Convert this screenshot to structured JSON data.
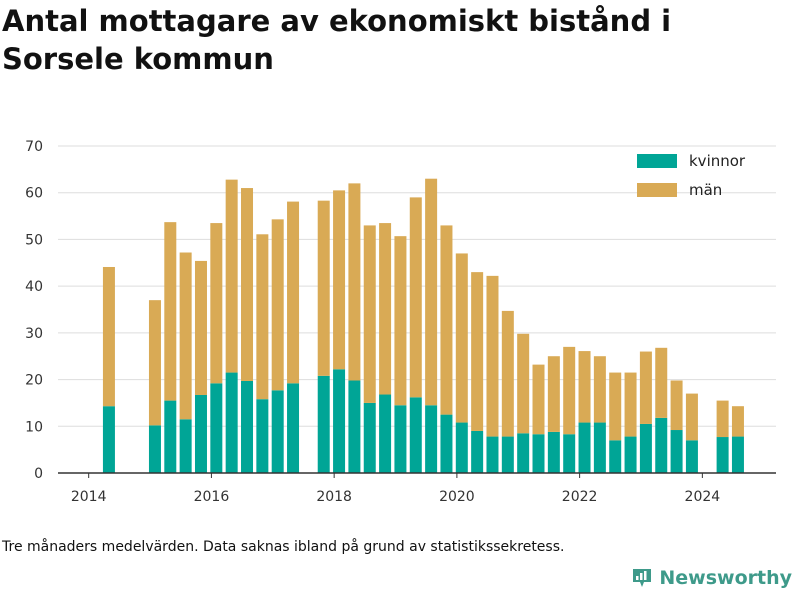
{
  "title": "Antal mottagare av ekonomiskt bistånd i Sorsele kommun",
  "footnote": "Tre månaders medelvärden. Data saknas ibland på grund av statistikssekretess.",
  "brand": "Newsworthy",
  "brand_icon": "bar-chart-logo-icon",
  "colors": {
    "kvinnor": "#00a596",
    "man": "#d9aa55",
    "grid": "#dddddd",
    "axis": "#333333",
    "brand": "#3e9a8a"
  },
  "chart_data": {
    "type": "bar",
    "stacked": true,
    "title": "Antal mottagare av ekonomiskt bistånd i Sorsele kommun",
    "xlabel": "",
    "ylabel": "",
    "ylim": [
      0,
      70
    ],
    "yticks": [
      0,
      10,
      20,
      30,
      40,
      50,
      60,
      70
    ],
    "xlim": [
      2013.5,
      2025.2
    ],
    "xticks": [
      "2014",
      "2016",
      "2018",
      "2020",
      "2022",
      "2024"
    ],
    "grid": true,
    "legend_position": "top-right",
    "x": [
      2014.33,
      2015.08,
      2015.33,
      2015.58,
      2015.83,
      2016.08,
      2016.33,
      2016.58,
      2016.83,
      2017.08,
      2017.33,
      2017.83,
      2018.08,
      2018.33,
      2018.58,
      2018.83,
      2019.08,
      2019.33,
      2019.58,
      2019.83,
      2020.08,
      2020.33,
      2020.58,
      2020.83,
      2021.08,
      2021.33,
      2021.58,
      2021.83,
      2022.08,
      2022.33,
      2022.58,
      2022.83,
      2023.08,
      2023.33,
      2023.58,
      2023.83,
      2024.33,
      2024.58
    ],
    "series": [
      {
        "name": "kvinnor",
        "values": [
          14.3,
          10.2,
          15.5,
          11.5,
          16.7,
          19.2,
          21.5,
          19.7,
          15.8,
          17.7,
          19.2,
          20.8,
          22.2,
          19.8,
          15.0,
          16.8,
          14.5,
          16.2,
          14.5,
          12.5,
          10.8,
          9.0,
          7.8,
          7.8,
          8.5,
          8.3,
          8.8,
          8.3,
          10.8,
          10.8,
          7.0,
          7.8,
          10.5,
          11.8,
          9.2,
          7.0,
          7.7,
          7.8
        ]
      },
      {
        "name": "män",
        "values": [
          29.8,
          26.8,
          38.2,
          35.7,
          28.7,
          34.3,
          41.3,
          41.3,
          35.3,
          36.6,
          38.9,
          37.5,
          38.3,
          42.2,
          38.0,
          36.7,
          36.2,
          42.8,
          48.5,
          40.5,
          36.2,
          34.0,
          34.4,
          26.9,
          21.3,
          14.9,
          16.2,
          18.7,
          15.3,
          14.2,
          14.5,
          13.7,
          15.5,
          15.0,
          10.6,
          10.0,
          7.8,
          6.5
        ]
      }
    ]
  }
}
